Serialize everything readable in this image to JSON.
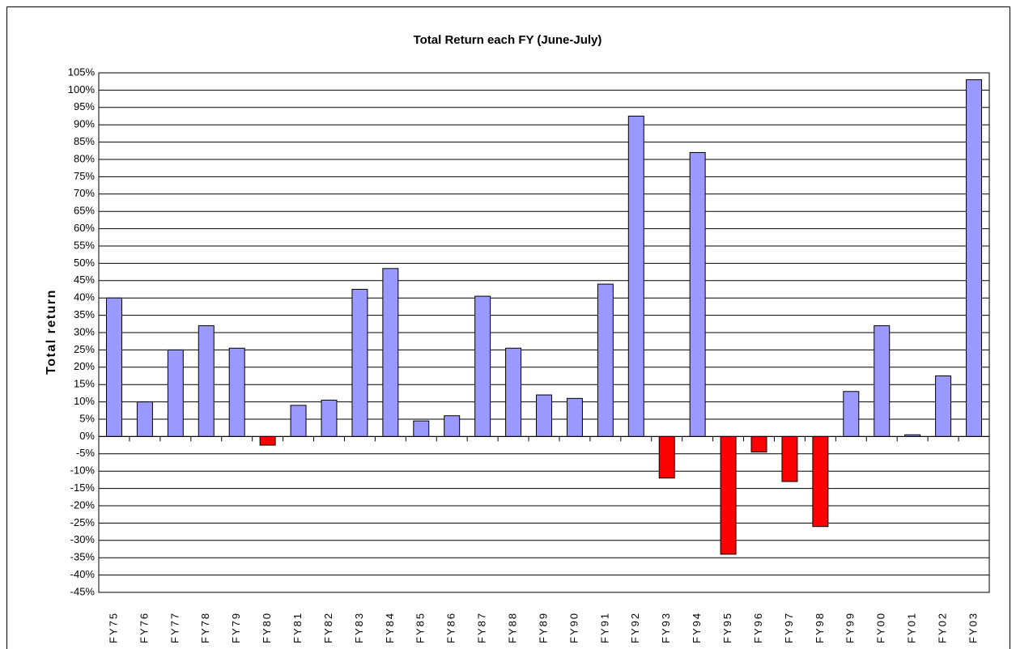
{
  "chart_data": {
    "type": "bar",
    "title": "Total Return each FY (June-July)",
    "y_label": "Total return",
    "categories": [
      "FY75",
      "FY76",
      "FY77",
      "FY78",
      "FY79",
      "FY80",
      "FY81",
      "FY82",
      "FY83",
      "FY84",
      "FY85",
      "FY86",
      "FY87",
      "FY88",
      "FY89",
      "FY90",
      "FY91",
      "FY92",
      "FY93",
      "FY94",
      "FY95",
      "FY96",
      "FY97",
      "FY98",
      "FY99",
      "FY00",
      "FY01",
      "FY02",
      "FY03"
    ],
    "values": [
      40,
      10,
      25,
      32,
      25.5,
      -2.5,
      9,
      10.5,
      42.5,
      48.5,
      4.5,
      6,
      40.5,
      25.5,
      12,
      11,
      44,
      92.5,
      -12,
      82,
      -34,
      -4.5,
      -13,
      -26,
      13,
      32,
      0.5,
      17.5,
      103
    ],
    "color": "#9999ff",
    "negative_color": "#ff0000",
    "ylim": [
      -45,
      105
    ],
    "yticks": [
      {
        "value": -45,
        "label": "-45%"
      },
      {
        "value": -40,
        "label": "-40%"
      },
      {
        "value": -35,
        "label": "-35%"
      },
      {
        "value": -30,
        "label": "-30%"
      },
      {
        "value": -25,
        "label": "-25%"
      },
      {
        "value": -20,
        "label": "-20%"
      },
      {
        "value": -15,
        "label": "-15%"
      },
      {
        "value": -10,
        "label": "-10%"
      },
      {
        "value": -5,
        "label": "-5%"
      },
      {
        "value": 0,
        "label": "0%"
      },
      {
        "value": 5,
        "label": "5%"
      },
      {
        "value": 10,
        "label": "10%"
      },
      {
        "value": 15,
        "label": "15%"
      },
      {
        "value": 20,
        "label": "20%"
      },
      {
        "value": 25,
        "label": "25%"
      },
      {
        "value": 30,
        "label": "30%"
      },
      {
        "value": 35,
        "label": "35%"
      },
      {
        "value": 40,
        "label": "40%"
      },
      {
        "value": 45,
        "label": "45%"
      },
      {
        "value": 50,
        "label": "50%"
      },
      {
        "value": 55,
        "label": "55%"
      },
      {
        "value": 60,
        "label": "60%"
      },
      {
        "value": 65,
        "label": "65%"
      },
      {
        "value": 70,
        "label": "70%"
      },
      {
        "value": 75,
        "label": "75%"
      },
      {
        "value": 80,
        "label": "80%"
      },
      {
        "value": 85,
        "label": "85%"
      },
      {
        "value": 90,
        "label": "90%"
      },
      {
        "value": 95,
        "label": "95%"
      },
      {
        "value": 100,
        "label": "100%"
      },
      {
        "value": 105,
        "label": "105%"
      }
    ],
    "grid": true
  }
}
